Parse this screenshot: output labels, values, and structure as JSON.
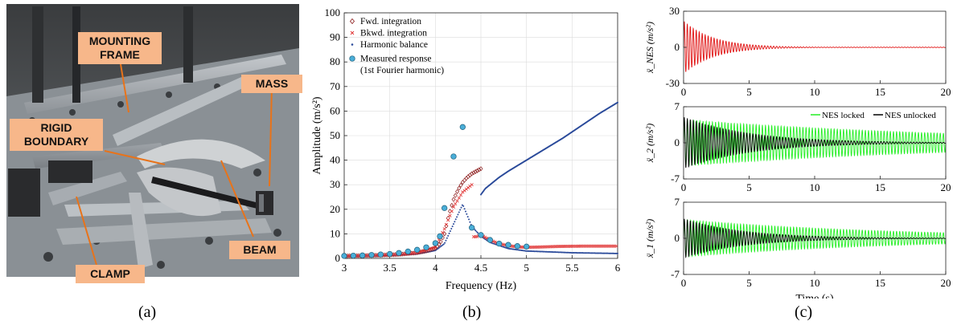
{
  "panel_a": {
    "caption": "(a)",
    "labels": {
      "mounting_frame": "MOUNTING FRAME",
      "mass": "MASS",
      "rigid_boundary": "RIGID BOUNDARY",
      "beam": "BEAM",
      "clamp": "CLAMP"
    },
    "colors": {
      "callout_bg": "#f7b78a",
      "leader": "#e8731a"
    }
  },
  "panel_b": {
    "caption": "(b)"
  },
  "panel_c": {
    "caption": "(c)"
  },
  "chart_data": [
    {
      "id": "b",
      "type": "scatter",
      "xlabel": "Frequency (Hz)",
      "ylabel": "Amplitude (m/s²)",
      "xlim": [
        3,
        6
      ],
      "ylim": [
        0,
        100
      ],
      "xticks": [
        3,
        3.5,
        4,
        4.5,
        5,
        5.5,
        6
      ],
      "xtick_labels": [
        "3",
        "3.5",
        "4",
        "4.5",
        "5",
        "5.5",
        "6"
      ],
      "yticks": [
        0,
        10,
        20,
        30,
        40,
        50,
        60,
        70,
        80,
        90,
        100
      ],
      "ytick_labels": [
        "0",
        "10",
        "20",
        "30",
        "40",
        "50",
        "60",
        "70",
        "80",
        "90",
        "100"
      ],
      "grid": true,
      "legend_position": "top-left",
      "legend": [
        {
          "label": "Fwd. integration",
          "marker": "diamond",
          "color": "#8b1a1a"
        },
        {
          "label": "Bkwd. integration",
          "marker": "x",
          "color": "#e03030"
        },
        {
          "label": "Harmonic balance",
          "marker": "dot",
          "color": "#2a4a9a"
        },
        {
          "label": "Measured response",
          "marker": "circle",
          "color": "#4aaed8"
        },
        {
          "label": "(1st Fourier harmonic)",
          "marker": "none",
          "color": "#000000"
        }
      ],
      "series": [
        {
          "name": "Fwd. integration",
          "x": [
            3.0,
            3.2,
            3.4,
            3.6,
            3.8,
            3.9,
            4.0,
            4.05,
            4.1,
            4.15,
            4.2,
            4.25,
            4.3,
            4.35,
            4.4,
            4.45,
            4.5
          ],
          "y": [
            1.0,
            1.1,
            1.3,
            1.6,
            2.3,
            3.0,
            4.2,
            6.0,
            10.0,
            18.0,
            24.0,
            28.0,
            31.0,
            33.0,
            34.5,
            35.5,
            36.5
          ]
        },
        {
          "name": "Bkwd. integration",
          "x": [
            6.0,
            5.8,
            5.6,
            5.4,
            5.2,
            5.0,
            4.9,
            4.8,
            4.7,
            4.6,
            4.55,
            4.5,
            4.45,
            4.4,
            4.3,
            4.2,
            4.1,
            4.0,
            3.8,
            3.6,
            3.4,
            3.2,
            3.0
          ],
          "y": [
            5.0,
            5.0,
            5.0,
            4.9,
            4.7,
            4.5,
            4.7,
            5.2,
            6.0,
            7.5,
            8.5,
            9.5,
            8.8,
            30.0,
            27.0,
            21.0,
            12.0,
            4.5,
            2.3,
            1.6,
            1.3,
            1.1,
            1.0
          ]
        },
        {
          "name": "Harmonic balance",
          "upper_branch": {
            "x": [
              4.5,
              4.55,
              4.6,
              4.7,
              4.8,
              5.0,
              5.2,
              5.4,
              5.6,
              5.8,
              6.0
            ],
            "y": [
              26.0,
              28.5,
              30.0,
              33.0,
              35.5,
              40.0,
              44.5,
              49.0,
              54.0,
              59.0,
              63.5
            ]
          },
          "lower_branch": {
            "x": [
              3.0,
              3.5,
              3.8,
              4.0,
              4.1,
              4.2,
              4.3,
              4.4,
              4.5,
              4.6,
              4.8,
              5.0,
              5.5,
              6.0
            ],
            "y": [
              0.9,
              1.2,
              1.8,
              3.2,
              6.0,
              14.0,
              22.0,
              13.0,
              9.0,
              6.5,
              4.0,
              3.0,
              2.3,
              2.0
            ]
          }
        },
        {
          "name": "Measured response",
          "x": [
            3.0,
            3.1,
            3.2,
            3.3,
            3.4,
            3.5,
            3.6,
            3.7,
            3.8,
            3.9,
            4.0,
            4.05,
            4.1,
            4.2,
            4.3,
            4.4,
            4.5,
            4.6,
            4.7,
            4.8,
            4.9,
            5.0
          ],
          "y": [
            1.0,
            1.1,
            1.2,
            1.4,
            1.6,
            1.8,
            2.2,
            2.8,
            3.5,
            4.5,
            6.2,
            9.0,
            20.5,
            41.5,
            53.5,
            12.5,
            9.5,
            7.5,
            6.0,
            5.5,
            5.0,
            4.8
          ]
        }
      ]
    },
    {
      "id": "c-top",
      "type": "line",
      "xlabel": "",
      "ylabel": "ẍ_NES (m/s²)",
      "xlim": [
        0,
        20
      ],
      "ylim": [
        -30,
        30
      ],
      "xticks": [
        0,
        5,
        10,
        15,
        20
      ],
      "xtick_labels": [
        "0",
        "5",
        "10",
        "15",
        "20"
      ],
      "yticks": [
        -30,
        0,
        30
      ],
      "ytick_labels": [
        "-30",
        "0",
        "30"
      ],
      "grid": false,
      "signal": {
        "amp": 22,
        "decay": 0.45,
        "freq_hz": 4.4,
        "tail_amp": 0.2
      },
      "series": [
        {
          "color": "#e01010"
        }
      ]
    },
    {
      "id": "c-mid",
      "type": "line",
      "xlabel": "",
      "ylabel": "ẍ_2 (m/s²)",
      "xlim": [
        0,
        20
      ],
      "ylim": [
        -7,
        7
      ],
      "xticks": [
        0,
        5,
        10,
        15,
        20
      ],
      "xtick_labels": [
        "0",
        "5",
        "10",
        "15",
        "20"
      ],
      "yticks": [
        -7,
        0,
        7
      ],
      "ytick_labels": [
        "-7",
        "0",
        "7"
      ],
      "grid": false,
      "legend_position": "top-right",
      "series": [
        {
          "name": "NES locked",
          "color": "#22ee22",
          "signal": {
            "amp": 4.5,
            "decay": 0.045,
            "freq_hz": 4.2
          }
        },
        {
          "name": "NES unlocked",
          "color": "#000000",
          "signal": {
            "amp": 5.0,
            "decay": 0.2,
            "freq_hz": 4.4
          }
        }
      ]
    },
    {
      "id": "c-bot",
      "type": "line",
      "xlabel": "Time (s)",
      "ylabel": "ẍ_1 (m/s²)",
      "xlim": [
        0,
        20
      ],
      "ylim": [
        -7,
        7
      ],
      "xticks": [
        0,
        5,
        10,
        15,
        20
      ],
      "xtick_labels": [
        "0",
        "5",
        "10",
        "15",
        "20"
      ],
      "yticks": [
        -7,
        0,
        7
      ],
      "ytick_labels": [
        "-7",
        "0",
        "7"
      ],
      "grid": false,
      "series": [
        {
          "color": "#22ee22",
          "signal": {
            "amp": 3.6,
            "decay": 0.06,
            "freq_hz": 4.2
          }
        },
        {
          "color": "#000000",
          "signal": {
            "amp": 3.8,
            "decay": 0.22,
            "freq_hz": 4.4
          }
        }
      ]
    }
  ]
}
